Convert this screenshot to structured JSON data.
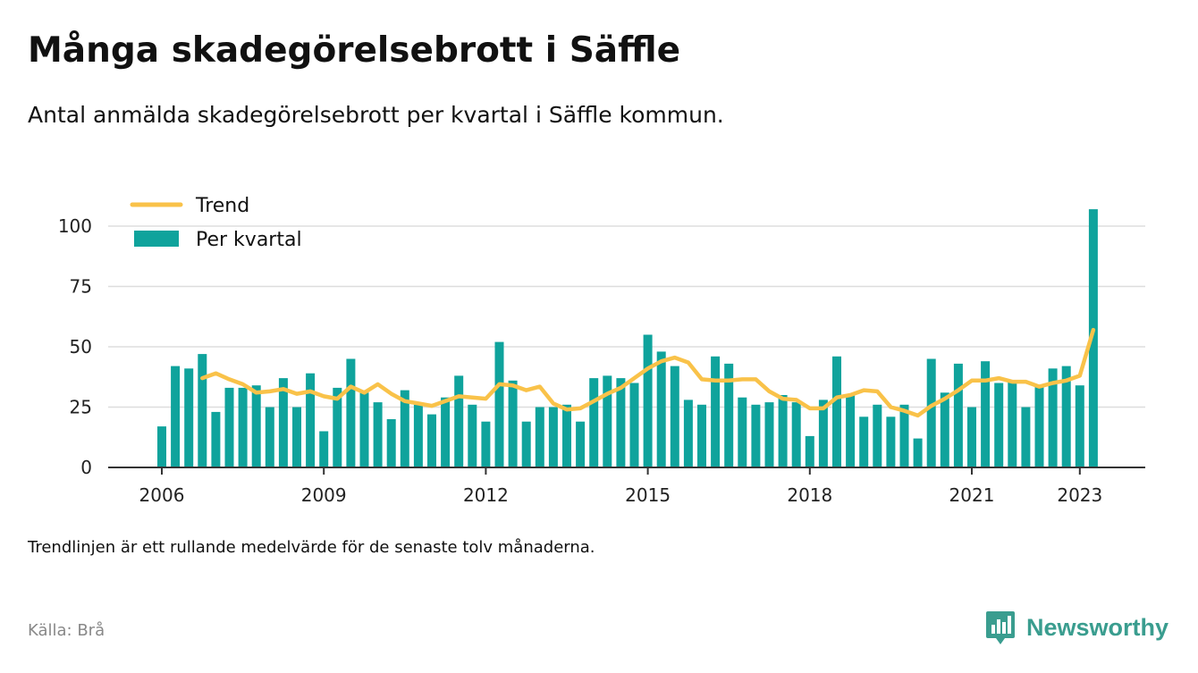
{
  "title": "Många skadegörelsebrott i Säffle",
  "subtitle": "Antal anmälda skadegörelsebrott per kvartal i Säffle kommun.",
  "note": "Trendlinjen är ett rullande medelvärde för de senaste tolv månaderna.",
  "source": "Källa: Brå",
  "brand": {
    "name": "Newsworthy",
    "icon": "newsworthy-logo-icon",
    "color": "#3a9d8f"
  },
  "colors": {
    "bars": "#0fa39c",
    "trend": "#f9c249",
    "grid": "#dddddd",
    "axis": "#333333"
  },
  "chart_data": {
    "type": "bar",
    "x_start": "2006 Q1",
    "x_ticks": [
      "2006",
      "2009",
      "2012",
      "2015",
      "2018",
      "2021",
      "2023"
    ],
    "y_ticks": [
      "0",
      "25",
      "50",
      "75",
      "100"
    ],
    "ylim": [
      0,
      110
    ],
    "grid": true,
    "legend": "top-left",
    "legend_labels": {
      "trend": "Trend",
      "bars": "Per kvartal"
    },
    "series": [
      {
        "name": "Per kvartal",
        "type": "bar",
        "values": [
          17,
          42,
          41,
          47,
          23,
          33,
          33,
          34,
          25,
          37,
          25,
          39,
          15,
          33,
          45,
          31,
          27,
          20,
          32,
          26,
          22,
          29,
          38,
          26,
          19,
          52,
          36,
          19,
          25,
          25,
          26,
          19,
          37,
          38,
          37,
          35,
          55,
          48,
          42,
          28,
          26,
          46,
          43,
          29,
          26,
          27,
          30,
          27,
          13,
          28,
          46,
          30,
          21,
          26,
          21,
          26,
          12,
          45,
          31,
          43,
          25,
          44,
          35,
          36,
          25,
          34,
          41,
          42,
          34,
          107
        ]
      },
      {
        "name": "Trend",
        "type": "line",
        "values": [
          null,
          null,
          null,
          37,
          39,
          36.5,
          34.5,
          31,
          31.5,
          32.5,
          30.5,
          31.5,
          29.5,
          28.5,
          33.5,
          31,
          34.5,
          30.5,
          27.5,
          26.5,
          25.5,
          27.5,
          29.5,
          29,
          28.5,
          34.5,
          34,
          32,
          33.5,
          26.5,
          24,
          24.5,
          27.5,
          30.5,
          33,
          37,
          41,
          44,
          45.5,
          43.5,
          36.5,
          36,
          36,
          36.5,
          36.5,
          31.5,
          28.5,
          28,
          24.5,
          24.5,
          29,
          30,
          32,
          31.5,
          25,
          23.5,
          21.5,
          25.5,
          28.5,
          32,
          36,
          36,
          37,
          35.5,
          35.5,
          33.5,
          35,
          36,
          38,
          57
        ]
      }
    ]
  }
}
